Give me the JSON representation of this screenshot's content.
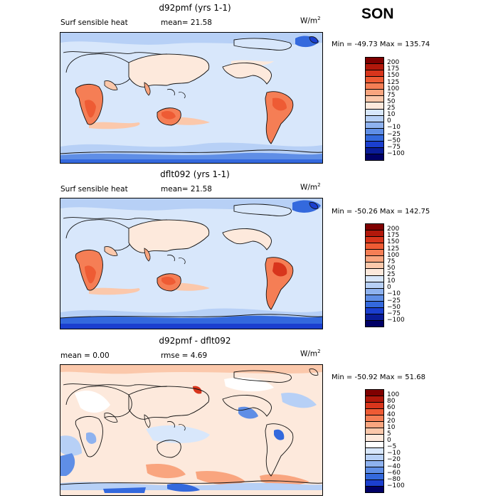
{
  "season": "SON",
  "panels": [
    {
      "title": "d92pmf (yrs 1-1)",
      "left_label": "Surf sensible heat",
      "mean_label": "mean=  21.58",
      "units_base": "W/m",
      "units_exp": "2",
      "stats": "Min = -49.73 Max = 135.74",
      "scale": [
        "200",
        "175",
        "150",
        "125",
        "100",
        "75",
        "50",
        "25",
        "10",
        "0",
        "−10",
        "−25",
        "−50",
        "−75",
        "−100"
      ]
    },
    {
      "title": "dflt092 (yrs 1-1)",
      "left_label": "Surf sensible heat",
      "mean_label": "mean=  21.58",
      "units_base": "W/m",
      "units_exp": "2",
      "stats": "Min = -50.26 Max = 142.75",
      "scale": [
        "200",
        "175",
        "150",
        "125",
        "100",
        "75",
        "50",
        "25",
        "10",
        "0",
        "−10",
        "−25",
        "−50",
        "−75",
        "−100"
      ]
    },
    {
      "title": "d92pmf - dflt092",
      "left_label": "mean =   0.00",
      "mean_label": "rmse =   4.69",
      "units_base": "W/m",
      "units_exp": "2",
      "stats": "Min = -50.92 Max =  51.68",
      "scale": [
        "100",
        "80",
        "60",
        "40",
        "20",
        "10",
        "5",
        "0",
        "−5",
        "−10",
        "−20",
        "−40",
        "−60",
        "−80",
        "−100"
      ]
    }
  ],
  "colors": {
    "abs_scale": [
      "#7f0000",
      "#b2180b",
      "#d8351c",
      "#ee5b34",
      "#f57e55",
      "#f9a57f",
      "#fbc8ab",
      "#fde9dc",
      "#d8e7fb",
      "#b7d0f6",
      "#8eb2ef",
      "#5f8ee6",
      "#3469dd",
      "#1b3fcf",
      "#0a1c98",
      "#000066"
    ],
    "diff_scale": [
      "#7f0000",
      "#b2180b",
      "#d8351c",
      "#ee5b34",
      "#f57e55",
      "#f9a57f",
      "#fbc8ab",
      "#fde9dc",
      "#ffffff",
      "#d8e7fb",
      "#b7d0f6",
      "#8eb2ef",
      "#5f8ee6",
      "#3469dd",
      "#1b3fcf",
      "#000066"
    ],
    "coast": "#111111"
  }
}
